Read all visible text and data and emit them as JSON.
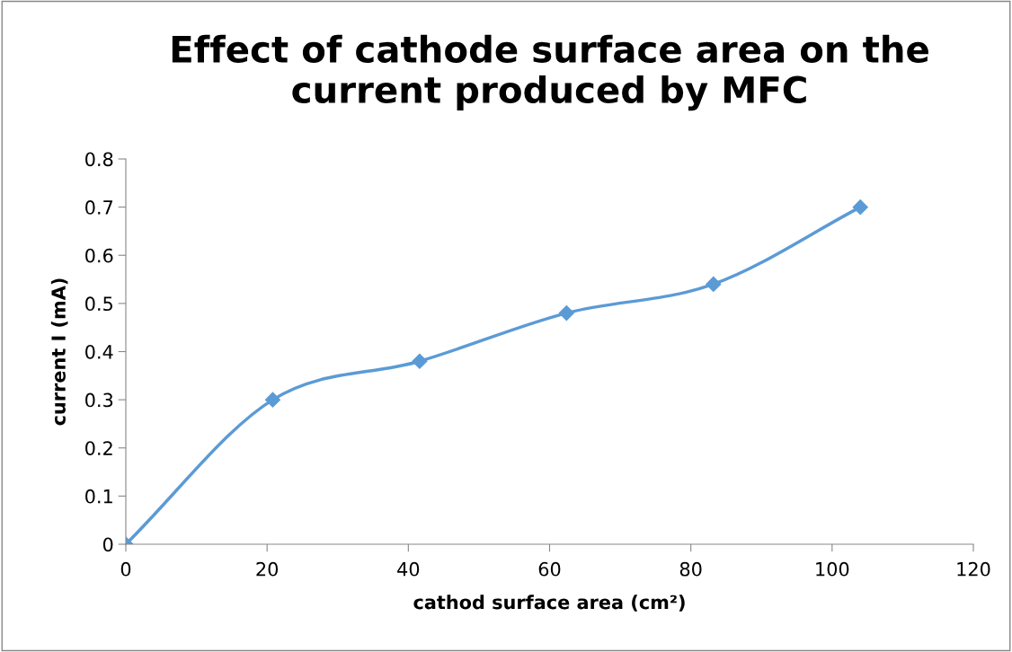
{
  "chart_data": {
    "type": "line",
    "title": "Effect of cathode surface area on the\ncurrent produced by MFC",
    "xlabel": "cathod surface area (cm²)",
    "ylabel": "current I (mA)",
    "x": [
      0,
      20.8,
      41.6,
      62.4,
      83.2,
      104
    ],
    "series": [
      {
        "color": "#5b9bd5",
        "values": [
          0,
          0.3,
          0.38,
          0.48,
          0.54,
          0.7
        ]
      }
    ],
    "xlim": [
      0,
      120
    ],
    "xticks": [
      0,
      20,
      40,
      60,
      80,
      100,
      120
    ],
    "ylim": [
      0,
      0.8
    ],
    "yticks": [
      0,
      0.1,
      0.2,
      0.3,
      0.4,
      0.5,
      0.6,
      0.7,
      0.8
    ],
    "grid": false,
    "legend": false,
    "marker": "diamond",
    "line_style": "solid"
  }
}
